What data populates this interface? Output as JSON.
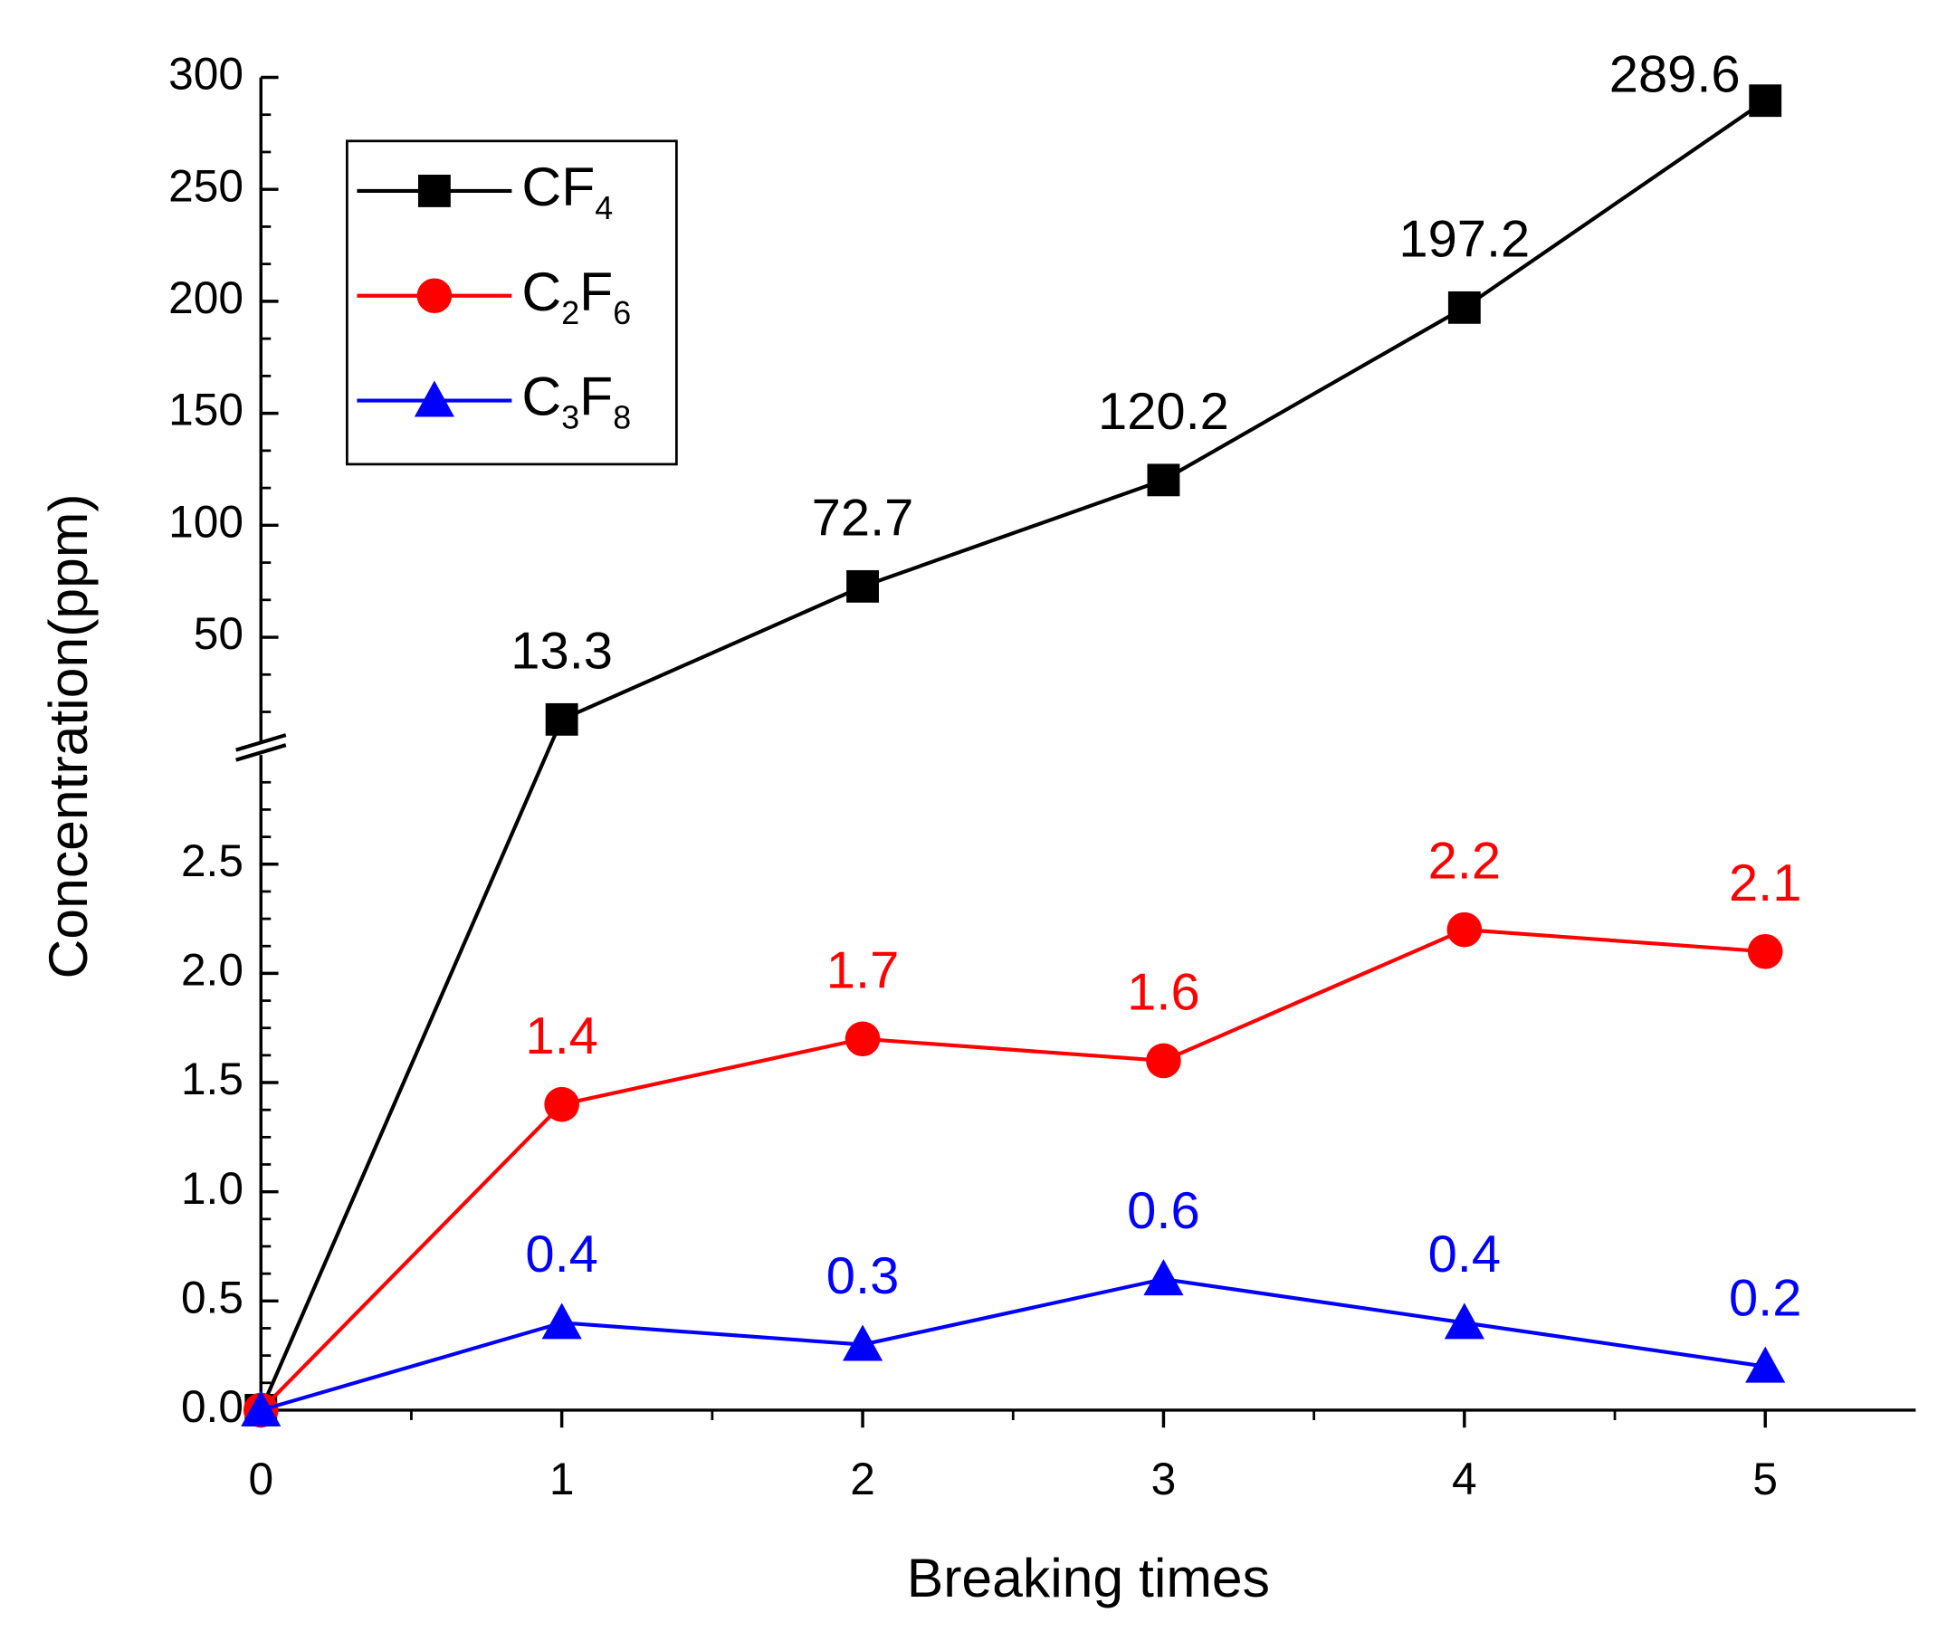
{
  "chart_data": {
    "type": "line",
    "xlabel": "Breaking times",
    "ylabel": "Concentration(ppm)",
    "x": [
      0,
      1,
      2,
      3,
      4,
      5
    ],
    "xlim": [
      0,
      5.5
    ],
    "xticks": [
      0,
      1,
      2,
      3,
      4,
      5
    ],
    "ylim": [
      0,
      3
    ],
    "yticks": [
      {
        "value": 0,
        "label": "0.0"
      },
      0.5,
      {
        "value": 1,
        "label": "1.0"
      },
      1.5,
      {
        "value": 2,
        "label": "2.0"
      },
      2.5
    ],
    "y_upper_lim": [
      3,
      300
    ],
    "y_upper_ticks": [
      50,
      100,
      150,
      200,
      250,
      300
    ],
    "legend": "upper left",
    "series": [
      {
        "name": "CF4",
        "color": "#000000",
        "marker": "square",
        "values": [
          0,
          13.3,
          72.7,
          120.2,
          197.2,
          289.6
        ],
        "value_labels": [
          null,
          "13.3",
          "72.7",
          "120.2",
          "197.2",
          "289.6"
        ]
      },
      {
        "name": "C2F6",
        "color": "#ff0000",
        "marker": "circle",
        "values": [
          0,
          1.4,
          1.7,
          1.6,
          2.2,
          2.1
        ],
        "value_labels": [
          null,
          "1.4",
          "1.7",
          "1.6",
          "2.2",
          "2.1"
        ]
      },
      {
        "name": "C3F8",
        "color": "#0000ff",
        "marker": "triangle",
        "values": [
          0,
          0.4,
          0.3,
          0.6,
          0.4,
          0.2
        ],
        "value_labels": [
          null,
          "0.4",
          "0.3",
          "0.6",
          "0.4",
          "0.2"
        ]
      }
    ]
  }
}
